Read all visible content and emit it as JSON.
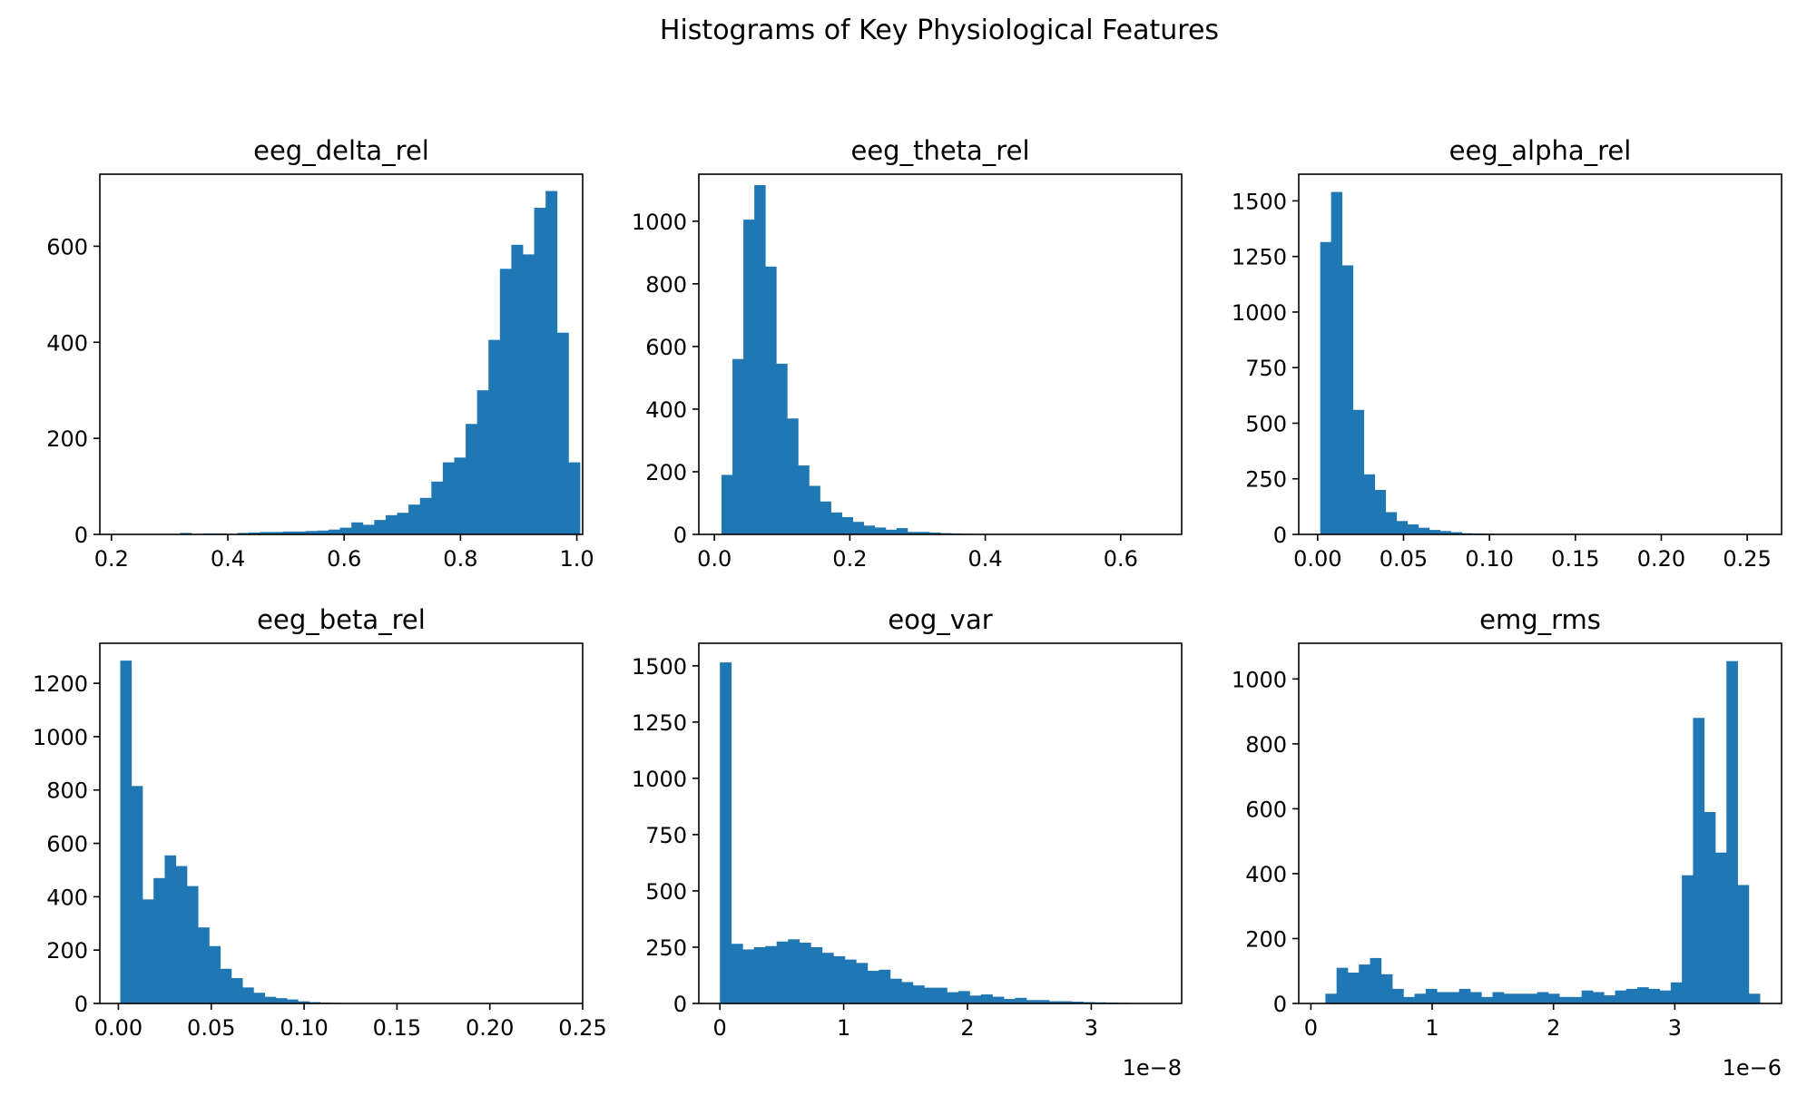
{
  "figure_title": "Histograms of Key Physiological Features",
  "bar_color": "#1f77b4",
  "chart_data": [
    {
      "type": "histogram",
      "title": "eeg_delta_rel",
      "xlabel": "",
      "ylabel": "",
      "xlim": [
        0.18,
        1.01
      ],
      "ylim": [
        0,
        750
      ],
      "xticks": [
        0.2,
        0.4,
        0.6,
        0.8,
        1.0
      ],
      "xtick_labels": [
        "0.2",
        "0.4",
        "0.6",
        "0.8",
        "1.0"
      ],
      "yticks": [
        0,
        200,
        400,
        600
      ],
      "ytick_labels": [
        "0",
        "200",
        "400",
        "600"
      ],
      "offset_label": "",
      "bin_start": 0.2,
      "bin_width": 0.01964,
      "counts": [
        0,
        0,
        0,
        0,
        0,
        0,
        3,
        0,
        2,
        2,
        0,
        3,
        4,
        5,
        5,
        6,
        6,
        7,
        8,
        10,
        14,
        25,
        20,
        30,
        40,
        45,
        62,
        76,
        110,
        150,
        160,
        230,
        300,
        405,
        553,
        603,
        583,
        680,
        715,
        420,
        150
      ]
    },
    {
      "type": "histogram",
      "title": "eeg_theta_rel",
      "xlabel": "",
      "ylabel": "",
      "xlim": [
        -0.023,
        0.69
      ],
      "ylim": [
        0,
        1150
      ],
      "xticks": [
        0.0,
        0.2,
        0.4,
        0.6
      ],
      "xtick_labels": [
        "0.0",
        "0.2",
        "0.4",
        "0.6"
      ],
      "yticks": [
        0,
        200,
        400,
        600,
        800,
        1000
      ],
      "ytick_labels": [
        "0",
        "200",
        "400",
        "600",
        "800",
        "1000"
      ],
      "offset_label": "",
      "bin_start": 0.0105,
      "bin_width": 0.01615,
      "counts": [
        190,
        560,
        1005,
        1115,
        855,
        545,
        370,
        220,
        155,
        105,
        70,
        55,
        40,
        28,
        22,
        15,
        20,
        8,
        8,
        6,
        4,
        3,
        2,
        1,
        1,
        1,
        1,
        1,
        1,
        1,
        1,
        1,
        1,
        1,
        1,
        1,
        1,
        1,
        1,
        1
      ]
    },
    {
      "type": "histogram",
      "title": "eeg_alpha_rel",
      "xlabel": "",
      "ylabel": "",
      "xlim": [
        -0.011,
        0.27
      ],
      "ylim": [
        0,
        1620
      ],
      "xticks": [
        0.0,
        0.05,
        0.1,
        0.15,
        0.2,
        0.25
      ],
      "xtick_labels": [
        "0.00",
        "0.05",
        "0.10",
        "0.15",
        "0.20",
        "0.25"
      ],
      "yticks": [
        0,
        250,
        500,
        750,
        1000,
        1250,
        1500
      ],
      "ytick_labels": [
        "0",
        "250",
        "500",
        "750",
        "1000",
        "1250",
        "1500"
      ],
      "offset_label": "",
      "bin_start": 0.0015,
      "bin_width": 0.00634,
      "counts": [
        1315,
        1540,
        1210,
        560,
        270,
        200,
        100,
        60,
        45,
        30,
        20,
        15,
        10,
        5,
        4,
        3,
        2,
        1,
        1,
        1,
        1,
        1,
        1,
        1,
        1,
        1,
        1,
        1,
        1,
        1,
        1,
        1,
        1,
        1,
        1,
        1,
        1,
        1,
        1,
        1
      ]
    },
    {
      "type": "histogram",
      "title": "eeg_beta_rel",
      "xlabel": "",
      "ylabel": "",
      "xlim": [
        -0.01,
        0.25
      ],
      "ylim": [
        0,
        1350
      ],
      "xticks": [
        0.0,
        0.05,
        0.1,
        0.15,
        0.2,
        0.25
      ],
      "xtick_labels": [
        "0.00",
        "0.05",
        "0.10",
        "0.15",
        "0.20",
        "0.25"
      ],
      "yticks": [
        0,
        200,
        400,
        600,
        800,
        1000,
        1200
      ],
      "ytick_labels": [
        "0",
        "200",
        "400",
        "600",
        "800",
        "1000",
        "1200"
      ],
      "offset_label": "",
      "bin_start": 0.001,
      "bin_width": 0.00598,
      "counts": [
        1285,
        815,
        390,
        470,
        555,
        515,
        440,
        285,
        215,
        130,
        95,
        60,
        40,
        25,
        20,
        15,
        8,
        5,
        3,
        2,
        1,
        1,
        1,
        1,
        1,
        1,
        1,
        1,
        1,
        1,
        1,
        1,
        1,
        1,
        1,
        1,
        1,
        1,
        1,
        1
      ]
    },
    {
      "type": "histogram",
      "title": "eog_var",
      "xlabel": "",
      "ylabel": "",
      "xlim": [
        -0.17,
        3.73
      ],
      "ylim": [
        0,
        1600
      ],
      "xticks": [
        0,
        1,
        2,
        3
      ],
      "xtick_labels": [
        "0",
        "1",
        "2",
        "3"
      ],
      "yticks": [
        0,
        250,
        500,
        750,
        1000,
        1250,
        1500
      ],
      "ytick_labels": [
        "0",
        "250",
        "500",
        "750",
        "1000",
        "1250",
        "1500"
      ],
      "offset_label": "1e−8",
      "bin_start": 0.0,
      "bin_width": 0.0917,
      "counts": [
        1515,
        265,
        240,
        250,
        255,
        275,
        285,
        270,
        250,
        225,
        210,
        195,
        180,
        145,
        150,
        110,
        95,
        80,
        70,
        70,
        50,
        55,
        35,
        40,
        30,
        20,
        25,
        15,
        15,
        10,
        10,
        8,
        6,
        5,
        4,
        3,
        2,
        2,
        1,
        1
      ]
    },
    {
      "type": "histogram",
      "title": "emg_rms",
      "xlabel": "",
      "ylabel": "",
      "xlim": [
        -0.1,
        3.88
      ],
      "ylim": [
        0,
        1110
      ],
      "xticks": [
        0,
        1,
        2,
        3
      ],
      "xtick_labels": [
        "0",
        "1",
        "2",
        "3"
      ],
      "yticks": [
        0,
        200,
        400,
        600,
        800,
        1000
      ],
      "ytick_labels": [
        "0",
        "200",
        "400",
        "600",
        "800",
        "1000"
      ],
      "offset_label": "1e−6",
      "bin_start": 0.12,
      "bin_width": 0.09182,
      "counts": [
        30,
        110,
        95,
        120,
        140,
        90,
        45,
        20,
        30,
        45,
        35,
        35,
        45,
        35,
        20,
        35,
        30,
        30,
        30,
        35,
        30,
        20,
        20,
        40,
        35,
        25,
        40,
        45,
        50,
        45,
        40,
        65,
        395,
        880,
        590,
        465,
        1055,
        365,
        30
      ]
    }
  ]
}
